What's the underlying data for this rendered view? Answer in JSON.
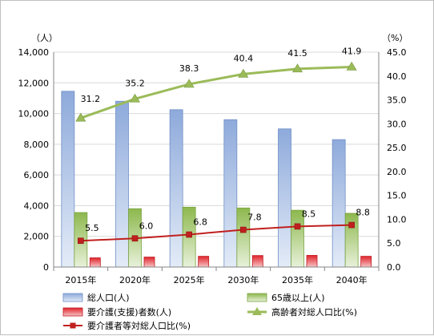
{
  "chart_data": {
    "type": "bar",
    "categories": [
      "2015年",
      "2020年",
      "2025年",
      "2030年",
      "2035年",
      "2040年"
    ],
    "left_axis": {
      "unit_label": "（人）",
      "range": [
        0,
        14000
      ],
      "ticks": [
        "0",
        "2,000",
        "4,000",
        "6,000",
        "8,000",
        "10,000",
        "12,000",
        "14,000"
      ]
    },
    "right_axis": {
      "unit_label": "（%）",
      "range": [
        0,
        45
      ],
      "ticks": [
        "0.0",
        "5.0",
        "10.0",
        "15.0",
        "20.0",
        "25.0",
        "30.0",
        "35.0",
        "40.0",
        "45.0"
      ]
    },
    "grid": true,
    "legend_position": "bottom",
    "bar_series": [
      {
        "name": "総人口(人)",
        "axis": "left",
        "color": "#8eaadb",
        "values": [
          11450,
          10800,
          10250,
          9600,
          9000,
          8300
        ]
      },
      {
        "name": "65歳以上(人)",
        "axis": "left",
        "color": "#9bbb59",
        "values": [
          3550,
          3800,
          3900,
          3850,
          3700,
          3500
        ]
      },
      {
        "name": "要介護(支援)者数(人)",
        "axis": "left",
        "color": "#e0242b",
        "values": [
          600,
          650,
          700,
          750,
          760,
          700
        ]
      }
    ],
    "line_series": [
      {
        "name": "高齢者対総人口比(%)",
        "axis": "right",
        "color": "#9bbb59",
        "marker": "triangle",
        "values": [
          31.2,
          35.2,
          38.3,
          40.4,
          41.5,
          41.9
        ],
        "labels": [
          "31.2",
          "35.2",
          "38.3",
          "40.4",
          "41.5",
          "41.9"
        ]
      },
      {
        "name": "要介護者等対総人口比(%)",
        "axis": "right",
        "color": "#c0201e",
        "marker": "square",
        "values": [
          5.5,
          6.0,
          6.8,
          7.8,
          8.5,
          8.8
        ],
        "labels": [
          "5.5",
          "6.0",
          "6.8",
          "7.8",
          "8.5",
          "8.8"
        ]
      }
    ],
    "legend": [
      {
        "label": "総人口(人)",
        "key": "total"
      },
      {
        "label": "65歳以上(人)",
        "key": "over65"
      },
      {
        "label": "要介護(支援)者数(人)",
        "key": "care"
      },
      {
        "label": "高齢者対総人口比(%)",
        "key": "elderly_ratio"
      },
      {
        "label": "要介護者等対総人口比(%)",
        "key": "care_ratio"
      }
    ]
  }
}
